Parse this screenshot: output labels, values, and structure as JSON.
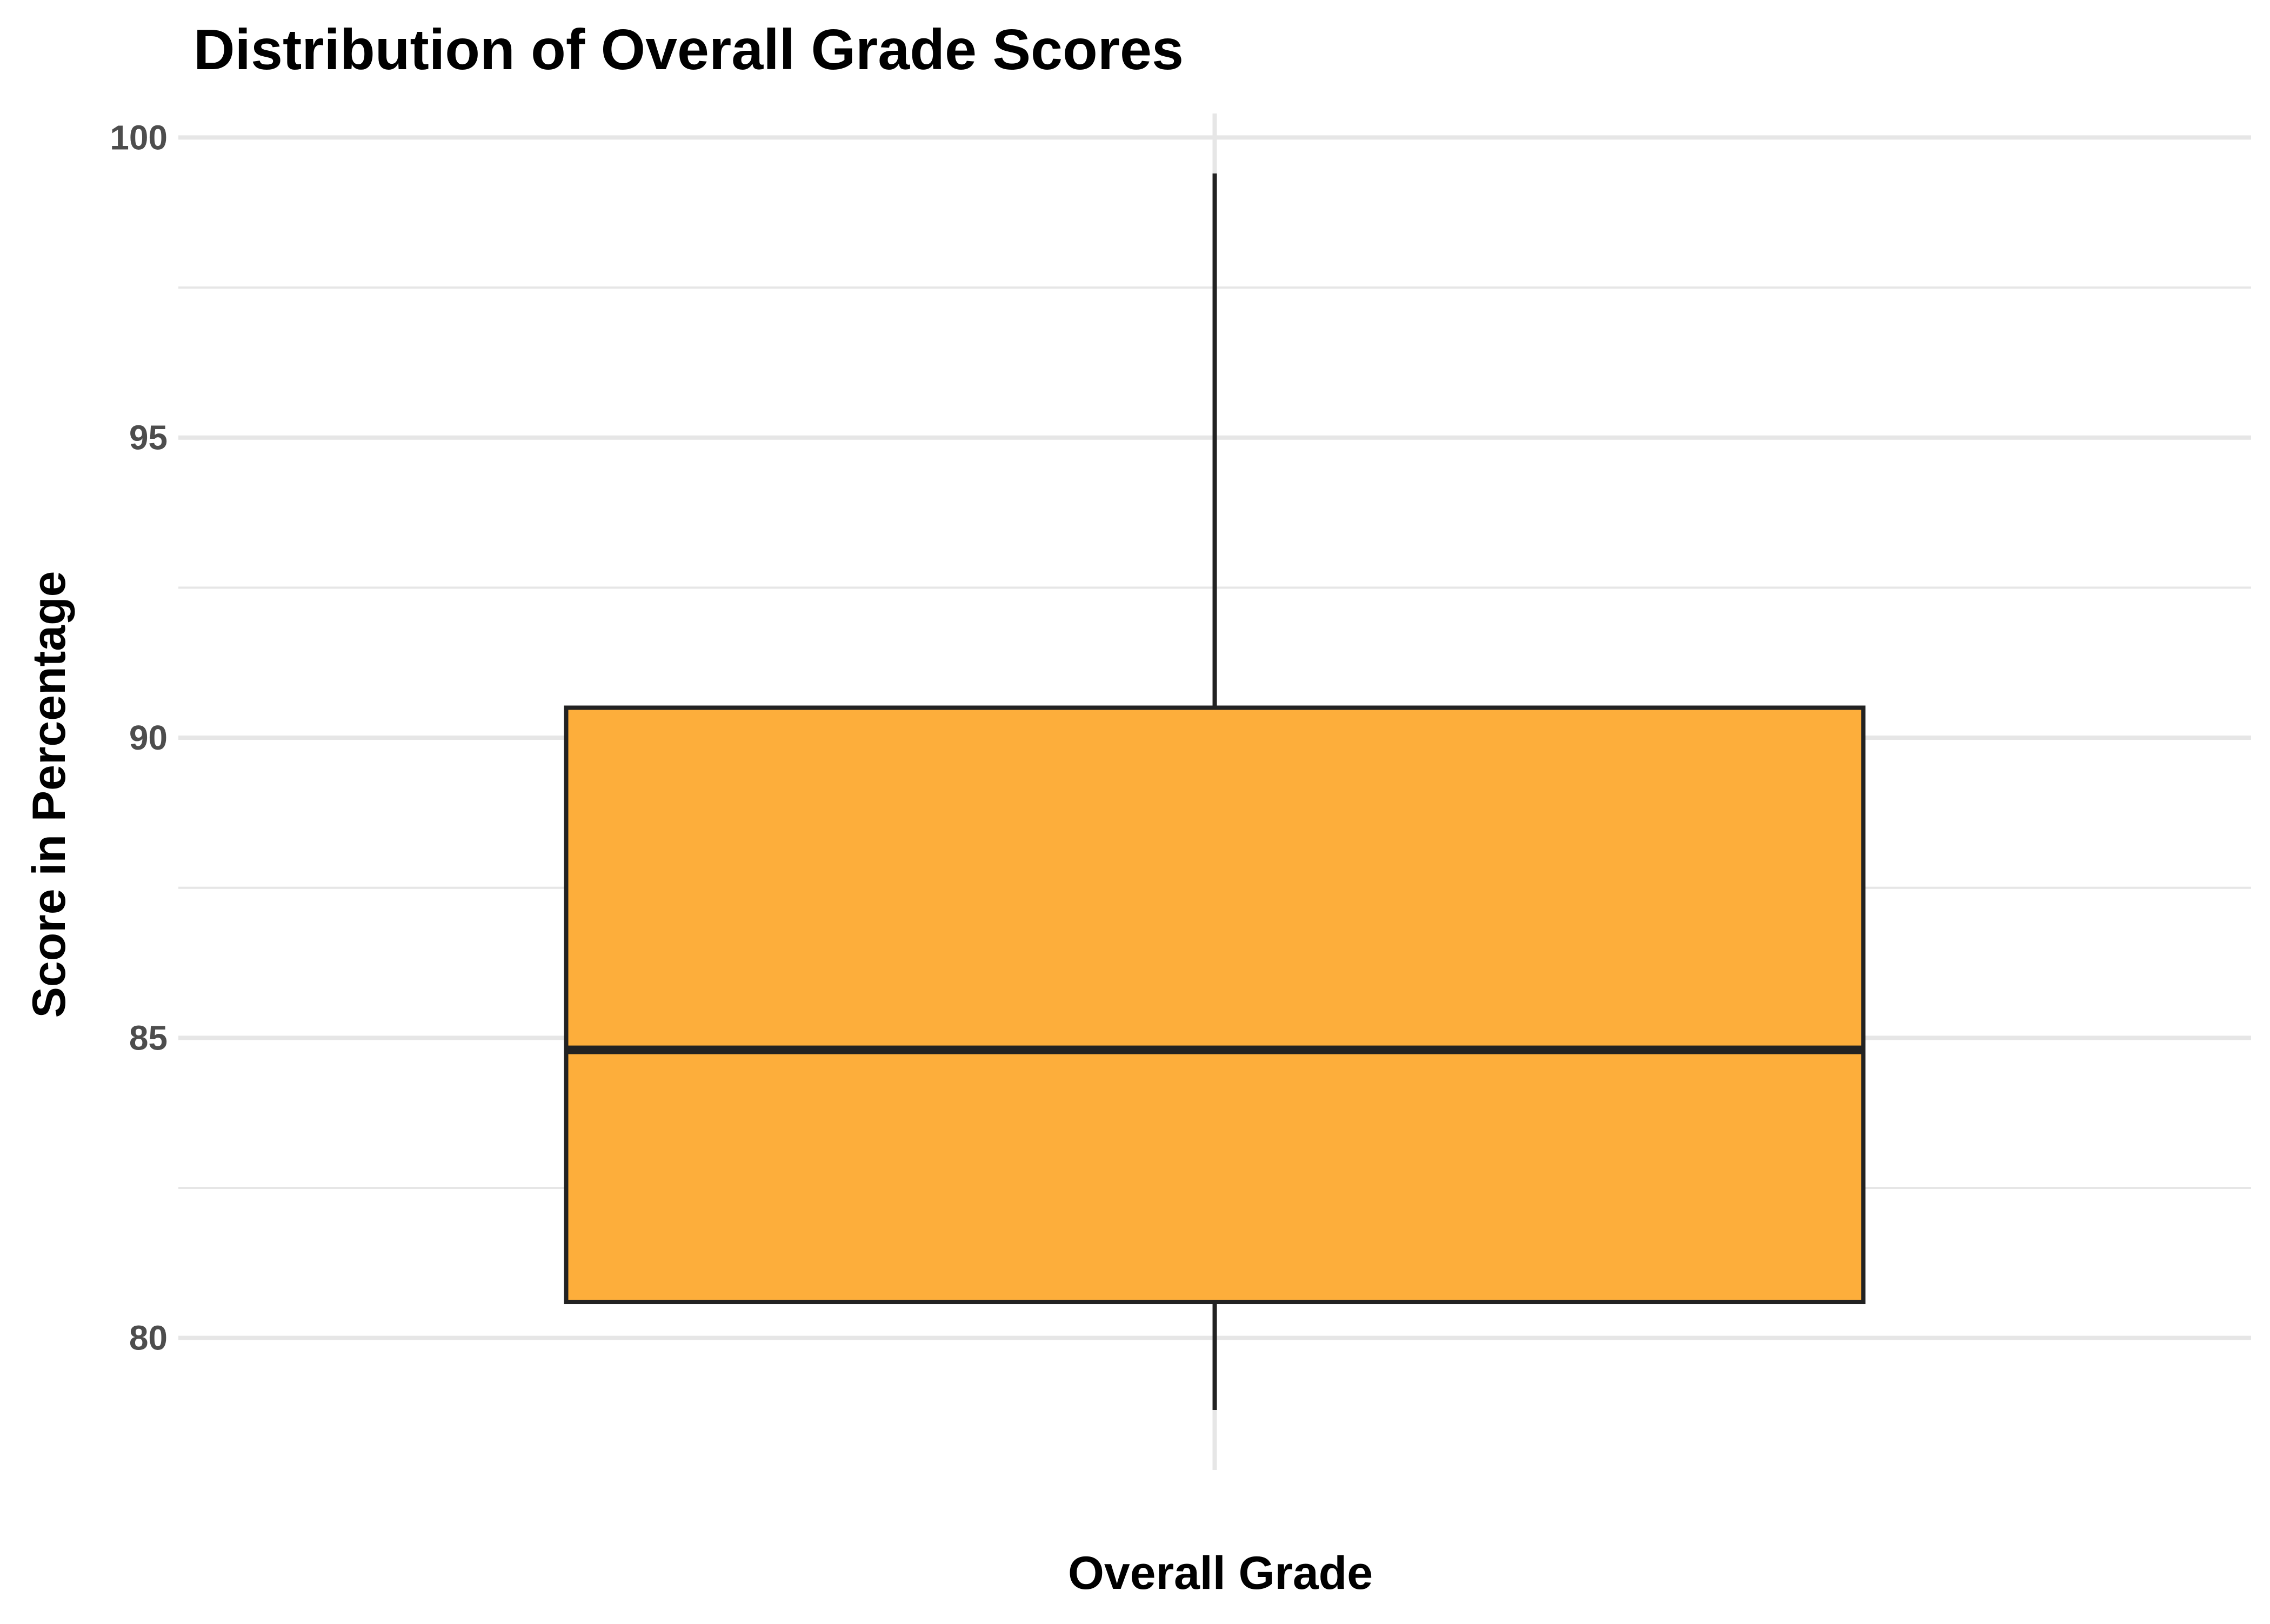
{
  "chart_data": {
    "type": "box",
    "title": "Distribution of Overall Grade Scores",
    "xlabel": "Overall Grade",
    "ylabel": "Score in Percentage",
    "categories": [
      "Overall Grade"
    ],
    "boxes": [
      {
        "category": "Overall Grade",
        "whisker_low": 78.8,
        "q1": 80.6,
        "median": 84.8,
        "q3": 90.5,
        "whisker_high": 99.4
      }
    ],
    "ylim": [
      77.8,
      100.4
    ],
    "yticks": [
      80,
      85,
      90,
      95,
      100
    ],
    "grid": true,
    "colors": {
      "box_fill": "#FDAE3B",
      "box_stroke": "#222222",
      "grid": "#E6E6E6"
    }
  }
}
